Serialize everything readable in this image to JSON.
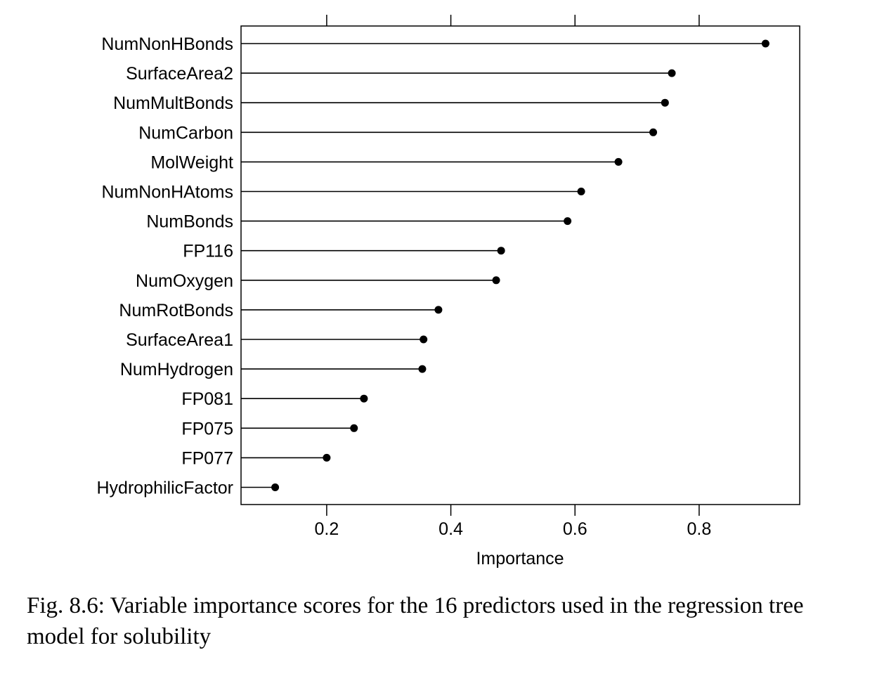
{
  "chart_data": {
    "type": "lollipop",
    "xlabel": "Importance",
    "xlim": [
      0.062,
      0.962
    ],
    "xticks": [
      0.2,
      0.4,
      0.6,
      0.8
    ],
    "xtick_labels": [
      "0.2",
      "0.4",
      "0.6",
      "0.8"
    ],
    "categories": [
      "NumNonHBonds",
      "SurfaceArea2",
      "NumMultBonds",
      "NumCarbon",
      "MolWeight",
      "NumNonHAtoms",
      "NumBonds",
      "FP116",
      "NumOxygen",
      "NumRotBonds",
      "SurfaceArea1",
      "NumHydrogen",
      "FP081",
      "FP075",
      "FP077",
      "HydrophilicFactor"
    ],
    "values": [
      0.907,
      0.756,
      0.745,
      0.726,
      0.67,
      0.61,
      0.588,
      0.481,
      0.473,
      0.38,
      0.356,
      0.354,
      0.26,
      0.244,
      0.2,
      0.117
    ],
    "grid": false,
    "colors": {
      "line": "#000000",
      "point": "#000000",
      "frame": "#000000"
    }
  },
  "caption": "Fig. 8.6: Variable importance scores for the 16 predictors used in the regression tree model for solubility"
}
